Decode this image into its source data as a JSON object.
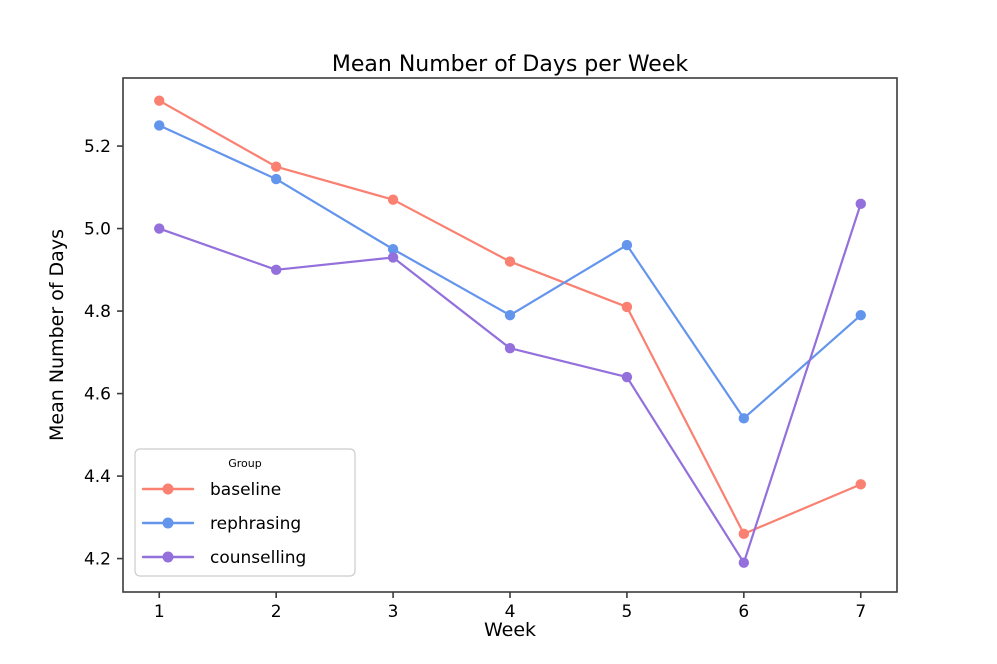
{
  "chart_data": {
    "type": "line",
    "title": "Mean Number of Days per Week",
    "xlabel": "Week",
    "ylabel": "Mean Number of Days",
    "x": [
      1,
      2,
      3,
      4,
      5,
      6,
      7
    ],
    "xticks": [
      1,
      2,
      3,
      4,
      5,
      6,
      7
    ],
    "yticks": [
      4.2,
      4.4,
      4.6,
      4.8,
      5.0,
      5.2
    ],
    "xlim": [
      0.69,
      7.31
    ],
    "ylim": [
      4.119,
      5.365
    ],
    "grid": false,
    "legend": {
      "title": "Group",
      "position": "lower-left"
    },
    "series": [
      {
        "name": "baseline",
        "color": "#FA8072",
        "values": [
          5.31,
          5.15,
          5.07,
          4.92,
          4.81,
          4.26,
          4.38
        ]
      },
      {
        "name": "rephrasing",
        "color": "#6495ED",
        "values": [
          5.25,
          5.12,
          4.95,
          4.79,
          4.96,
          4.54,
          4.79
        ]
      },
      {
        "name": "counselling",
        "color": "#9370DB",
        "values": [
          5.0,
          4.9,
          4.93,
          4.71,
          4.64,
          4.19,
          5.06
        ]
      }
    ],
    "colors": {
      "spine": "#3b3b3b",
      "text": "#000000",
      "legend_border": "#cccccc",
      "legend_bg": "#ffffff"
    }
  }
}
